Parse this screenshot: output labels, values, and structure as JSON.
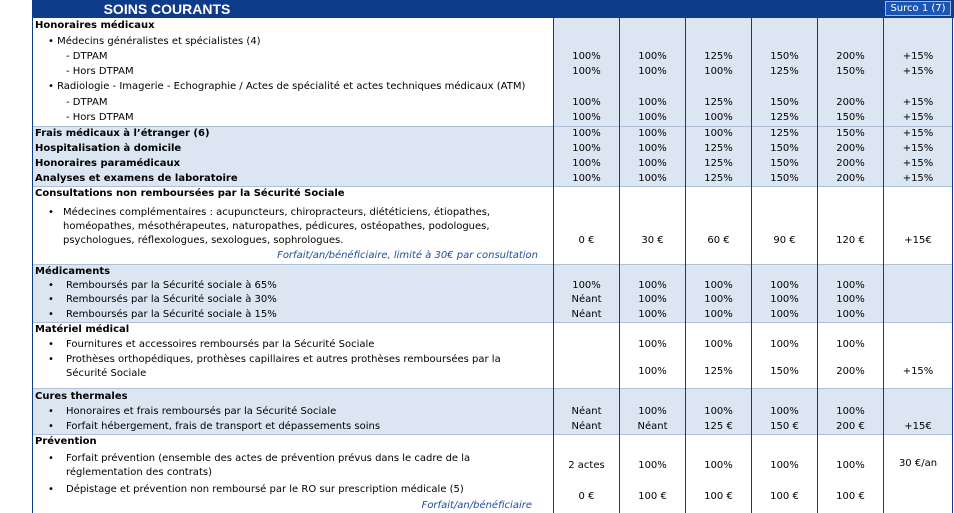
{
  "title": "SOINS COURANTS",
  "surco_label": "Surco 1 (7)",
  "rows": {
    "honoraires_medicaux": "Honoraires médicaux",
    "medecins": "•  Médecins généralistes et spécialistes (4)",
    "med_dtpam": "-     DTPAM",
    "med_hors": "-     Hors DTPAM",
    "radio": "•  Radiologie - Imagerie - Echographie / Actes de spécialité et actes techniques médicaux (ATM)",
    "radio_dtpam": "-     DTPAM",
    "radio_hors": "-     Hors DTPAM",
    "frais_etranger": "Frais médicaux à l’étranger (6)",
    "hospit_domicile": "Hospitalisation à domicile",
    "paramedicaux": "Honoraires paramédicaux",
    "analyses": "Analyses et examens de laboratoire",
    "consultations_nr": "Consultations non remboursées par la Sécurité Sociale",
    "medecines_comp": "Médecines complémentaires : acupuncteurs, chiropracteurs, diététiciens, étiopathes, homéopathes, mésothérapeutes, naturopathes, pédicures, ostéopathes, podologues, psychologues, réflexologues, sexologues, sophrologues.",
    "forfait_consult": "Forfait/an/bénéficiaire, limité à 30€ par consultation",
    "medicaments": "Médicaments",
    "med_65": "Remboursés par la Sécurité sociale à 65%",
    "med_30": "Remboursés par la Sécurité sociale à 30%",
    "med_15": "Remboursés par la Sécurité sociale à 15%",
    "materiel": "Matériel médical",
    "fournitures": "Fournitures et accessoires remboursés par la Sécurité Sociale",
    "protheses": "Prothèses orthopédiques, prothèses capillaires et autres prothèses remboursées par la Sécurité Sociale",
    "cures": "Cures thermales",
    "cures_honoraires": "Honoraires et frais remboursés par la Sécurité Sociale",
    "cures_forfait": "Forfait hébergement, frais de transport et dépassements soins",
    "prevention": "Prévention",
    "forfait_prevention": "Forfait prévention (ensemble des actes de prévention prévus dans le cadre de la réglementation des contrats)",
    "depistage": "Dépistage et prévention non remboursé par le RO sur prescription médicale (5)",
    "forfait_benef": "Forfait/an/bénéficiaire"
  },
  "bullet": "•",
  "values": {
    "med_dtpam": [
      "100%",
      "100%",
      "125%",
      "150%",
      "200%",
      "+15%"
    ],
    "med_hors": [
      "100%",
      "100%",
      "100%",
      "125%",
      "150%",
      "+15%"
    ],
    "radio_dtpam": [
      "100%",
      "100%",
      "125%",
      "150%",
      "200%",
      "+15%"
    ],
    "radio_hors": [
      "100%",
      "100%",
      "100%",
      "125%",
      "150%",
      "+15%"
    ],
    "frais_etranger": [
      "100%",
      "100%",
      "100%",
      "125%",
      "150%",
      "+15%"
    ],
    "hospit_domicile": [
      "100%",
      "100%",
      "125%",
      "150%",
      "200%",
      "+15%"
    ],
    "paramedicaux": [
      "100%",
      "100%",
      "125%",
      "150%",
      "200%",
      "+15%"
    ],
    "analyses": [
      "100%",
      "100%",
      "125%",
      "150%",
      "200%",
      "+15%"
    ],
    "medecines_comp": [
      "0 €",
      "30 €",
      "60 €",
      "90 €",
      "120 €",
      "+15€"
    ],
    "med_65": [
      "100%",
      "100%",
      "100%",
      "100%",
      "100%",
      ""
    ],
    "med_30": [
      "Néant",
      "100%",
      "100%",
      "100%",
      "100%",
      ""
    ],
    "med_15": [
      "Néant",
      "100%",
      "100%",
      "100%",
      "100%",
      ""
    ],
    "fournitures": [
      "",
      "100%",
      "100%",
      "100%",
      "100%",
      ""
    ],
    "protheses": [
      "",
      "100%",
      "125%",
      "150%",
      "200%",
      "+15%"
    ],
    "cures_honoraires": [
      "Néant",
      "100%",
      "100%",
      "100%",
      "100%",
      ""
    ],
    "cures_forfait": [
      "Néant",
      "Néant",
      "125 €",
      "150 €",
      "200 €",
      "+15€"
    ],
    "forfait_prevention": [
      "2 actes",
      "100%",
      "100%",
      "100%",
      "100%",
      "30 €/an"
    ],
    "depistage": [
      "0 €",
      "100 €",
      "100 €",
      "100 €",
      "100 €",
      ""
    ]
  },
  "colors": {
    "header_blue": "#0e3c8a",
    "band": "#dce6f2",
    "note": "#1f4e9a"
  }
}
